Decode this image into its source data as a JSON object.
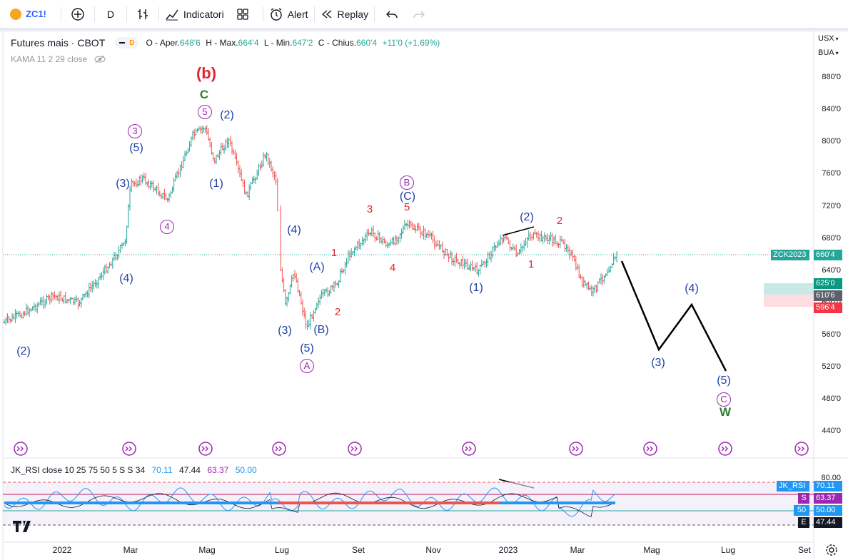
{
  "toolbar": {
    "symbol": "ZC1!",
    "interval": "D",
    "indicators": "Indicatori",
    "alert": "Alert",
    "replay": "Replay"
  },
  "legend": {
    "title": "Futures mais · CBOT",
    "badge_letter": "D",
    "o_label": "O - Aper.",
    "o_val": "648'6",
    "h_label": "H - Max.",
    "h_val": "664'4",
    "l_label": "L - Min.",
    "l_val": "647'2",
    "c_label": "C - Chius.",
    "c_val": "660'4",
    "change": "+11'0 (+1.69%)",
    "kama": "KAMA 11 2 29 close"
  },
  "rsi_legend": {
    "name": "JK_RSI close 10 25 75 50 5 S S 34",
    "v1": "70.11",
    "v2": "47.44",
    "v3": "63.37",
    "v4": "50.00"
  },
  "price_axis": {
    "currency": "USX",
    "unit": "BUA",
    "ticks": [
      "880'0",
      "840'0",
      "800'0",
      "760'0",
      "720'0",
      "680'0",
      "640'0",
      "600'0",
      "560'0",
      "520'0",
      "480'0",
      "440'0"
    ]
  },
  "price_tags": {
    "symbol_tag": "ZCK2023",
    "last": "660'4",
    "tp": "625'0",
    "entry": "610'6",
    "sl": "596'4"
  },
  "rsi_axis": {
    "tick": "80.00",
    "jk_label": "JK_RSI",
    "jk_val": "70.11",
    "s_label": "S",
    "s_val": "63.37",
    "mid_label": "50",
    "mid_val": "50.00",
    "e_label": "E",
    "e_val": "47.44"
  },
  "time_axis": [
    "2022",
    "Mar",
    "Mag",
    "Lug",
    "Set",
    "Nov",
    "2023",
    "Mar",
    "Mag",
    "Lug",
    "Set"
  ],
  "wave_labels": {
    "b_big": "(b)",
    "c_green": "C",
    "c5": "5",
    "w2_top": "(2)",
    "c3": "3",
    "w5": "(5)",
    "w3": "(3)",
    "w1": "(1)",
    "c4": "4",
    "w4_mar": "(4)",
    "w2_start": "(2)",
    "w4_jul": "(4)",
    "A_paren": "(A)",
    "w3_jul": "(3)",
    "B_paren": "(B)",
    "w5_aug": "(5)",
    "cA": "A",
    "r1_jul": "1",
    "r2_aug": "2",
    "r3_sep": "3",
    "r4_sep": "4",
    "r5_oct": "5",
    "cB": "B",
    "C_paren": "(C)",
    "w1_nov": "(1)",
    "w2_dec": "(2)",
    "r1_jan": "1",
    "r2_feb": "2",
    "p3": "(3)",
    "p4": "(4)",
    "p5": "(5)",
    "cC": "C",
    "W": "W"
  },
  "colors": {
    "up": "#26a69a",
    "down": "#ef5350",
    "blue": "#1e3fa8",
    "red": "#e0262f",
    "purple": "#9c27b0",
    "green": "#2e7d32"
  }
}
